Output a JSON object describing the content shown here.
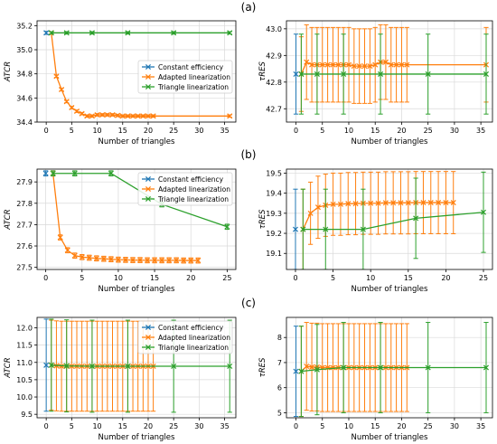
{
  "colors": {
    "constant_efficiency": "#1f77b4",
    "adapted_linearization": "#ff7f0e",
    "triangle_linearization": "#2ca02c",
    "grid": "#d9d9d9",
    "axis": "#000000"
  },
  "panel_labels": [
    "(a)",
    "(b)",
    "(c)"
  ],
  "chart_data": [
    {
      "id": "a-atcr",
      "row": 0,
      "col": 0,
      "type": "line",
      "xlabel": "Number of triangles",
      "ylabel": "ATCR",
      "xlim": [
        -1.8,
        37.2
      ],
      "ylim": [
        34.4,
        35.24
      ],
      "xticks": [
        0,
        5,
        10,
        15,
        20,
        25,
        30,
        35
      ],
      "yticks": [
        34.4,
        34.6,
        34.8,
        35.0,
        35.2
      ],
      "ytick_labels": [
        "34.4",
        "34.6",
        "34.8",
        "35.0",
        "35.2"
      ],
      "legend": {
        "position": "center-right",
        "entries": [
          "Constant efficiency",
          "Adapted linearization",
          "Triangle linearization"
        ]
      },
      "series": [
        {
          "name": "Constant efficiency",
          "color_key": "constant_efficiency",
          "x": [
            0
          ],
          "y": [
            35.14
          ],
          "err": [
            0.012
          ]
        },
        {
          "name": "Adapted linearization",
          "color_key": "adapted_linearization",
          "x": [
            1,
            2,
            3,
            4,
            5,
            6,
            7,
            8,
            9,
            10,
            11,
            12,
            13,
            14,
            15,
            16,
            17,
            18,
            19,
            20,
            21,
            36
          ],
          "y": [
            35.14,
            34.78,
            34.67,
            34.57,
            34.52,
            34.49,
            34.47,
            34.45,
            34.45,
            34.46,
            34.46,
            34.46,
            34.46,
            34.455,
            34.45,
            34.45,
            34.45,
            34.45,
            34.45,
            34.45,
            34.45,
            34.45
          ],
          "err": [
            0.01,
            0.01,
            0.01,
            0.01,
            0.01,
            0.01,
            0.01,
            0.01,
            0.01,
            0.01,
            0.01,
            0.01,
            0.01,
            0.01,
            0.01,
            0.01,
            0.01,
            0.01,
            0.01,
            0.01,
            0.01,
            0.01
          ]
        },
        {
          "name": "Triangle linearization",
          "color_key": "triangle_linearization",
          "x": [
            1,
            4,
            9,
            16,
            25,
            36
          ],
          "y": [
            35.14,
            35.14,
            35.14,
            35.14,
            35.14,
            35.14
          ],
          "err": [
            0.01,
            0.01,
            0.01,
            0.01,
            0.01,
            0.01
          ]
        }
      ]
    },
    {
      "id": "a-tau",
      "row": 0,
      "col": 1,
      "type": "line",
      "xlabel": "Number of triangles",
      "ylabel": "τRES",
      "xlim": [
        -1.8,
        37.2
      ],
      "ylim": [
        42.65,
        43.03
      ],
      "xticks": [
        0,
        5,
        10,
        15,
        20,
        25,
        30,
        35
      ],
      "yticks": [
        42.7,
        42.8,
        42.9,
        43.0
      ],
      "ytick_labels": [
        "42.7",
        "42.8",
        "42.9",
        "43.0"
      ],
      "legend": null,
      "series": [
        {
          "name": "Constant efficiency",
          "color_key": "constant_efficiency",
          "x": [
            0
          ],
          "y": [
            42.83
          ],
          "err": [
            0.15
          ]
        },
        {
          "name": "Adapted linearization",
          "color_key": "adapted_linearization",
          "x": [
            1,
            2,
            3,
            4,
            5,
            6,
            7,
            8,
            9,
            10,
            11,
            12,
            13,
            14,
            15,
            16,
            17,
            18,
            19,
            20,
            21,
            36
          ],
          "y": [
            42.83,
            42.875,
            42.865,
            42.865,
            42.865,
            42.865,
            42.865,
            42.865,
            42.865,
            42.865,
            42.86,
            42.86,
            42.86,
            42.86,
            42.865,
            42.875,
            42.875,
            42.865,
            42.865,
            42.865,
            42.865,
            42.865
          ],
          "err": [
            0.14,
            0.14,
            0.14,
            0.14,
            0.14,
            0.14,
            0.14,
            0.14,
            0.14,
            0.14,
            0.14,
            0.14,
            0.14,
            0.14,
            0.14,
            0.14,
            0.14,
            0.14,
            0.14,
            0.14,
            0.14,
            0.14
          ]
        },
        {
          "name": "Triangle linearization",
          "color_key": "triangle_linearization",
          "x": [
            1,
            4,
            9,
            16,
            25,
            36
          ],
          "y": [
            42.83,
            42.83,
            42.83,
            42.83,
            42.83,
            42.83
          ],
          "err": [
            0.15,
            0.15,
            0.15,
            0.15,
            0.15,
            0.15
          ]
        }
      ]
    },
    {
      "id": "b-atcr",
      "row": 1,
      "col": 0,
      "type": "line",
      "xlabel": "Number of triangles",
      "ylabel": "ATCR",
      "xlim": [
        -1.2,
        26.2
      ],
      "ylim": [
        27.49,
        27.96
      ],
      "xticks": [
        0,
        5,
        10,
        15,
        20,
        25
      ],
      "yticks": [
        27.5,
        27.6,
        27.7,
        27.8,
        27.9
      ],
      "ytick_labels": [
        "27.5",
        "27.6",
        "27.7",
        "27.8",
        "27.9"
      ],
      "legend": {
        "position": "top-right",
        "entries": [
          "Constant efficiency",
          "Adapted linearization",
          "Triangle linearization"
        ]
      },
      "series": [
        {
          "name": "Constant efficiency",
          "color_key": "constant_efficiency",
          "x": [
            0
          ],
          "y": [
            27.94
          ],
          "err": [
            0.012
          ]
        },
        {
          "name": "Adapted linearization",
          "color_key": "adapted_linearization",
          "x": [
            1,
            2,
            3,
            4,
            5,
            6,
            7,
            8,
            9,
            10,
            11,
            12,
            13,
            14,
            15,
            16,
            17,
            18,
            19,
            20,
            21
          ],
          "y": [
            27.94,
            27.64,
            27.58,
            27.555,
            27.548,
            27.545,
            27.542,
            27.54,
            27.538,
            27.536,
            27.535,
            27.534,
            27.534,
            27.533,
            27.533,
            27.533,
            27.533,
            27.533,
            27.532,
            27.532,
            27.532
          ],
          "err": [
            0.012,
            0.012,
            0.012,
            0.012,
            0.012,
            0.012,
            0.012,
            0.012,
            0.012,
            0.012,
            0.012,
            0.012,
            0.012,
            0.012,
            0.012,
            0.012,
            0.012,
            0.012,
            0.012,
            0.012,
            0.012
          ]
        },
        {
          "name": "Triangle linearization",
          "color_key": "triangle_linearization",
          "x": [
            1,
            4,
            9,
            16,
            25
          ],
          "y": [
            27.94,
            27.94,
            27.94,
            27.795,
            27.69
          ],
          "err": [
            0.012,
            0.012,
            0.012,
            0.012,
            0.012
          ]
        }
      ]
    },
    {
      "id": "b-tau",
      "row": 1,
      "col": 1,
      "type": "line",
      "xlabel": "Number of triangles",
      "ylabel": "τRES",
      "xlim": [
        -1.2,
        26.2
      ],
      "ylim": [
        19.02,
        19.52
      ],
      "xticks": [
        0,
        5,
        10,
        15,
        20,
        25
      ],
      "yticks": [
        19.1,
        19.2,
        19.3,
        19.4,
        19.5
      ],
      "ytick_labels": [
        "19.1",
        "19.2",
        "19.3",
        "19.4",
        "19.5"
      ],
      "legend": null,
      "series": [
        {
          "name": "Constant efficiency",
          "color_key": "constant_efficiency",
          "x": [
            0
          ],
          "y": [
            19.22
          ],
          "err": [
            0.2
          ]
        },
        {
          "name": "Adapted linearization",
          "color_key": "adapted_linearization",
          "x": [
            1,
            2,
            3,
            4,
            5,
            6,
            7,
            8,
            9,
            10,
            11,
            12,
            13,
            14,
            15,
            16,
            17,
            18,
            19,
            20,
            21
          ],
          "y": [
            19.22,
            19.3,
            19.33,
            19.34,
            19.345,
            19.345,
            19.348,
            19.348,
            19.35,
            19.35,
            19.35,
            19.352,
            19.352,
            19.352,
            19.352,
            19.353,
            19.353,
            19.353,
            19.353,
            19.353,
            19.353
          ],
          "err": [
            0.2,
            0.155,
            0.155,
            0.155,
            0.155,
            0.155,
            0.155,
            0.155,
            0.155,
            0.155,
            0.155,
            0.155,
            0.155,
            0.155,
            0.155,
            0.155,
            0.155,
            0.155,
            0.155,
            0.155,
            0.155
          ]
        },
        {
          "name": "Triangle linearization",
          "color_key": "triangle_linearization",
          "x": [
            1,
            4,
            9,
            16,
            25
          ],
          "y": [
            19.22,
            19.22,
            19.22,
            19.275,
            19.305
          ],
          "err": [
            0.2,
            0.2,
            0.2,
            0.2,
            0.2
          ]
        }
      ]
    },
    {
      "id": "c-atcr",
      "row": 2,
      "col": 0,
      "type": "line",
      "xlabel": "Number of triangles",
      "ylabel": "ATCR",
      "xlim": [
        -1.8,
        37.2
      ],
      "ylim": [
        9.4,
        12.3
      ],
      "xticks": [
        0,
        5,
        10,
        15,
        20,
        25,
        30,
        35
      ],
      "yticks": [
        9.5,
        10.0,
        10.5,
        11.0,
        11.5,
        12.0
      ],
      "ytick_labels": [
        "9.5",
        "10.0",
        "10.5",
        "11.0",
        "11.5",
        "12.0"
      ],
      "legend": {
        "position": "top-right",
        "entries": [
          "Constant efficiency",
          "Adapted linearization",
          "Triangle linearization"
        ]
      },
      "series": [
        {
          "name": "Constant efficiency",
          "color_key": "constant_efficiency",
          "x": [
            0
          ],
          "y": [
            10.92
          ],
          "err": [
            1.33
          ]
        },
        {
          "name": "Adapted linearization",
          "color_key": "adapted_linearization",
          "x": [
            1,
            2,
            3,
            4,
            5,
            6,
            7,
            8,
            9,
            10,
            11,
            12,
            13,
            14,
            15,
            16,
            17,
            18,
            19,
            20,
            21
          ],
          "y": [
            10.92,
            10.9,
            10.89,
            10.89,
            10.89,
            10.89,
            10.89,
            10.89,
            10.89,
            10.89,
            10.89,
            10.89,
            10.89,
            10.89,
            10.89,
            10.89,
            10.89,
            10.89,
            10.89,
            10.89,
            10.89
          ],
          "err": [
            1.3,
            1.3,
            1.3,
            1.3,
            1.3,
            1.3,
            1.3,
            1.3,
            1.3,
            1.3,
            1.3,
            1.3,
            1.3,
            1.3,
            1.3,
            1.3,
            1.3,
            1.3,
            1.3,
            1.3,
            1.3
          ]
        },
        {
          "name": "Triangle linearization",
          "color_key": "triangle_linearization",
          "x": [
            1,
            4,
            9,
            16,
            25,
            36
          ],
          "y": [
            10.92,
            10.9,
            10.89,
            10.89,
            10.89,
            10.89
          ],
          "err": [
            1.33,
            1.33,
            1.33,
            1.33,
            1.33,
            1.33
          ]
        }
      ]
    },
    {
      "id": "c-tau",
      "row": 2,
      "col": 1,
      "type": "line",
      "xlabel": "Number of triangles",
      "ylabel": "τRES",
      "xlim": [
        -1.8,
        37.2
      ],
      "ylim": [
        4.8,
        8.8
      ],
      "xticks": [
        0,
        5,
        10,
        15,
        20,
        25,
        30,
        35
      ],
      "yticks": [
        5,
        6,
        7,
        8
      ],
      "ytick_labels": [
        "5",
        "6",
        "7",
        "8"
      ],
      "legend": null,
      "series": [
        {
          "name": "Constant efficiency",
          "color_key": "constant_efficiency",
          "x": [
            0
          ],
          "y": [
            6.65
          ],
          "err": [
            1.8
          ]
        },
        {
          "name": "Adapted linearization",
          "color_key": "adapted_linearization",
          "x": [
            1,
            2,
            3,
            4,
            5,
            6,
            7,
            8,
            9,
            10,
            11,
            12,
            13,
            14,
            15,
            16,
            17,
            18,
            19,
            20,
            21
          ],
          "y": [
            6.65,
            6.85,
            6.82,
            6.82,
            6.8,
            6.8,
            6.8,
            6.8,
            6.8,
            6.8,
            6.8,
            6.8,
            6.8,
            6.8,
            6.8,
            6.8,
            6.8,
            6.8,
            6.8,
            6.8,
            6.8
          ],
          "err": [
            1.8,
            1.75,
            1.75,
            1.75,
            1.75,
            1.75,
            1.75,
            1.75,
            1.75,
            1.75,
            1.75,
            1.75,
            1.75,
            1.75,
            1.75,
            1.75,
            1.75,
            1.75,
            1.75,
            1.75,
            1.75
          ]
        },
        {
          "name": "Triangle linearization",
          "color_key": "triangle_linearization",
          "x": [
            1,
            4,
            9,
            16,
            25,
            36
          ],
          "y": [
            6.65,
            6.72,
            6.8,
            6.8,
            6.8,
            6.8
          ],
          "err": [
            1.8,
            1.8,
            1.8,
            1.8,
            1.8,
            1.8
          ]
        }
      ]
    }
  ]
}
